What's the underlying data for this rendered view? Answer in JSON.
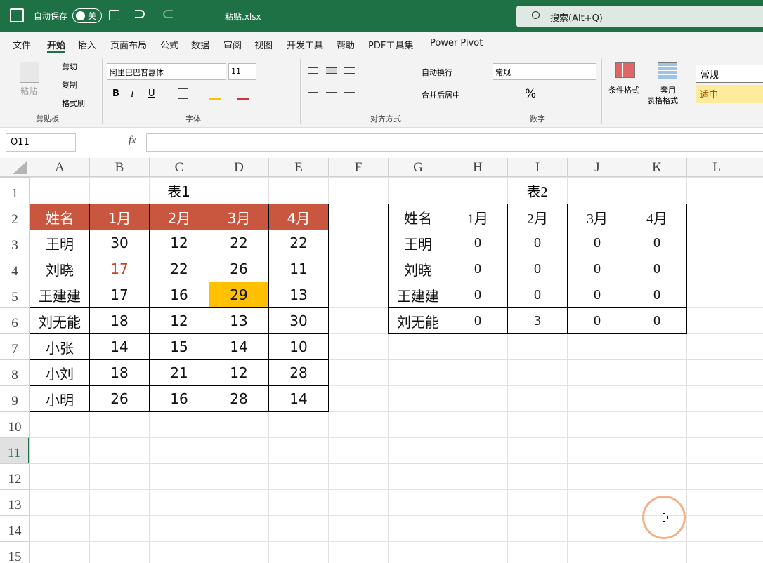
{
  "title_bar": {
    "autosave": "自动保存",
    "toggle": "关",
    "filename": "粘贴.xlsx",
    "search": "搜索(Alt+Q)"
  },
  "tabs": [
    "文件",
    "开始",
    "插入",
    "页面布局",
    "公式",
    "数据",
    "审阅",
    "视图",
    "开发工具",
    "帮助",
    "PDF工具集",
    "Power Pivot"
  ],
  "ribbon": {
    "clipboard": {
      "paste": "粘贴",
      "cut": "剪切",
      "copy": "复制",
      "format_painter": "格式刷",
      "label": "剪贴板"
    },
    "font": {
      "name": "阿里巴巴普惠体",
      "size": "11",
      "bold": "B",
      "italic": "I",
      "underline": "U",
      "label": "字体"
    },
    "alignment": {
      "wrap": "自动换行",
      "merge": "合并后居中",
      "label": "对齐方式"
    },
    "number": {
      "format": "常规",
      "percent": "%",
      "label": "数字"
    },
    "styles": {
      "conditional": "条件格式",
      "table_format_1": "套用",
      "table_format_2": "表格格式",
      "style_normal": "常规",
      "style_neutral": "适中"
    }
  },
  "formula_bar": {
    "name_box": "O11",
    "fx": "fx"
  },
  "columns": [
    "A",
    "B",
    "C",
    "D",
    "E",
    "F",
    "G",
    "H",
    "I",
    "J",
    "K",
    "L"
  ],
  "rows": [
    1,
    2,
    3,
    4,
    5,
    6,
    7,
    8,
    9,
    10,
    11,
    12,
    13,
    14,
    15
  ],
  "table1": {
    "title": "表1",
    "header": [
      "姓名",
      "1月",
      "2月",
      "3月",
      "4月"
    ],
    "rows": [
      [
        "王明",
        30,
        12,
        22,
        22
      ],
      [
        "刘晓",
        17,
        22,
        26,
        11
      ],
      [
        "王建建",
        17,
        16,
        29,
        13
      ],
      [
        "刘无能",
        18,
        12,
        13,
        30
      ],
      [
        "小张",
        14,
        15,
        14,
        10
      ],
      [
        "小刘",
        18,
        21,
        12,
        28
      ],
      [
        "小明",
        26,
        16,
        28,
        14
      ]
    ]
  },
  "table2": {
    "title": "表2",
    "header": [
      "姓名",
      "1月",
      "2月",
      "3月",
      "4月"
    ],
    "rows": [
      [
        "王明",
        0,
        0,
        0,
        0
      ],
      [
        "刘晓",
        0,
        0,
        0,
        0
      ],
      [
        "王建建",
        0,
        0,
        0,
        0
      ],
      [
        "刘无能",
        0,
        3,
        0,
        0
      ]
    ]
  }
}
